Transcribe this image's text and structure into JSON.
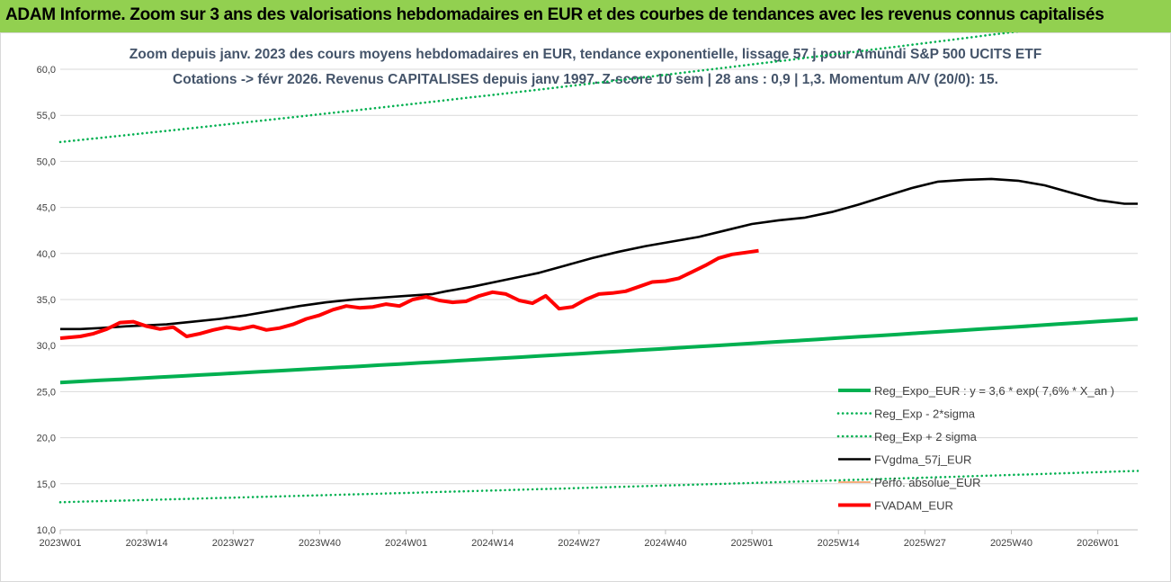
{
  "header": {
    "title": "ADAM Informe. Zoom sur 3 ans des valorisations hebdomadaires en EUR et des courbes de tendances avec les revenus connus capitalisés"
  },
  "colors": {
    "header_bg": "#92d050",
    "green": "#00b050",
    "black": "#000000",
    "red": "#ff0000",
    "grid": "#d9d9d9",
    "subtitle": "#44546a"
  },
  "chart_data": {
    "type": "line",
    "title_line1": "Zoom depuis janv. 2023 des cours moyens hebdomadaires en EUR, tendance exponentielle, lissage 57 j pour Amundi S&P 500 UCITS ETF",
    "title_line2": "Cotations -> févr 2026. Revenus CAPITALISES depuis janv 1997. Z-score 10 sem | 28 ans : 0,9 | 1,3. Momentum A/V (20/0): 15.",
    "ylim": [
      10,
      60
    ],
    "yticks": [
      "10,0",
      "15,0",
      "20,0",
      "25,0",
      "30,0",
      "35,0",
      "40,0",
      "45,0",
      "50,0",
      "55,0",
      "60,0"
    ],
    "xticks": [
      "2023W01",
      "2023W14",
      "2023W27",
      "2023W40",
      "2024W01",
      "2024W14",
      "2024W27",
      "2024W40",
      "2025W01",
      "2025W14",
      "2025W27",
      "2025W40",
      "2026W01"
    ],
    "x_points": 163,
    "grid": true,
    "legend_position": "bottom-right",
    "series": [
      {
        "name": "Reg_Expo_EUR : y = 3,6 * exp( 7,6% *  X_an )",
        "style": "solid-thick",
        "color": "#00b050",
        "points": [
          [
            0,
            26.0
          ],
          [
            162,
            32.9
          ]
        ]
      },
      {
        "name": "Reg_Exp - 2*sigma",
        "style": "dotted",
        "color": "#00b050",
        "points": [
          [
            0,
            13.0
          ],
          [
            162,
            16.4
          ]
        ]
      },
      {
        "name": "Reg_Exp + 2 sigma",
        "style": "dotted",
        "color": "#00b050",
        "points": [
          [
            0,
            52.1
          ],
          [
            162,
            65.8
          ]
        ]
      },
      {
        "name": "FVgdma_57j_EUR",
        "style": "solid",
        "color": "#000000",
        "points": [
          [
            0,
            31.8
          ],
          [
            3,
            31.8
          ],
          [
            6,
            31.9
          ],
          [
            10,
            32.1
          ],
          [
            13,
            32.2
          ],
          [
            16,
            32.3
          ],
          [
            20,
            32.6
          ],
          [
            24,
            32.9
          ],
          [
            28,
            33.3
          ],
          [
            32,
            33.8
          ],
          [
            36,
            34.3
          ],
          [
            40,
            34.7
          ],
          [
            44,
            35.0
          ],
          [
            48,
            35.2
          ],
          [
            52,
            35.4
          ],
          [
            56,
            35.6
          ],
          [
            58,
            35.9
          ],
          [
            62,
            36.4
          ],
          [
            66,
            37.0
          ],
          [
            70,
            37.6
          ],
          [
            72,
            37.9
          ],
          [
            76,
            38.7
          ],
          [
            80,
            39.5
          ],
          [
            84,
            40.2
          ],
          [
            88,
            40.8
          ],
          [
            92,
            41.3
          ],
          [
            96,
            41.8
          ],
          [
            100,
            42.5
          ],
          [
            104,
            43.2
          ],
          [
            108,
            43.6
          ],
          [
            112,
            43.9
          ],
          [
            116,
            44.5
          ],
          [
            120,
            45.3
          ],
          [
            124,
            46.2
          ],
          [
            128,
            47.1
          ],
          [
            132,
            47.8
          ],
          [
            136,
            48.0
          ],
          [
            140,
            48.1
          ],
          [
            144,
            47.9
          ],
          [
            148,
            47.4
          ],
          [
            152,
            46.6
          ],
          [
            156,
            45.8
          ],
          [
            160,
            45.4
          ],
          [
            162,
            45.4
          ]
        ]
      },
      {
        "name": "Perfo. absolue_EUR",
        "style": "solid-thin",
        "color": "#ed7d31",
        "points": []
      },
      {
        "name": "FVADAM_EUR",
        "style": "solid-thick",
        "color": "#ff0000",
        "points": [
          [
            0,
            30.8
          ],
          [
            3,
            31.0
          ],
          [
            5,
            31.3
          ],
          [
            7,
            31.8
          ],
          [
            9,
            32.5
          ],
          [
            11,
            32.6
          ],
          [
            13,
            32.1
          ],
          [
            15,
            31.8
          ],
          [
            17,
            32.0
          ],
          [
            19,
            31.0
          ],
          [
            21,
            31.3
          ],
          [
            23,
            31.7
          ],
          [
            25,
            32.0
          ],
          [
            27,
            31.8
          ],
          [
            29,
            32.1
          ],
          [
            31,
            31.7
          ],
          [
            33,
            31.9
          ],
          [
            35,
            32.3
          ],
          [
            37,
            32.9
          ],
          [
            39,
            33.3
          ],
          [
            41,
            33.9
          ],
          [
            43,
            34.3
          ],
          [
            45,
            34.1
          ],
          [
            47,
            34.2
          ],
          [
            49,
            34.5
          ],
          [
            51,
            34.3
          ],
          [
            53,
            35.0
          ],
          [
            55,
            35.3
          ],
          [
            57,
            34.9
          ],
          [
            59,
            34.7
          ],
          [
            61,
            34.8
          ],
          [
            63,
            35.4
          ],
          [
            65,
            35.8
          ],
          [
            67,
            35.6
          ],
          [
            69,
            34.9
          ],
          [
            71,
            34.6
          ],
          [
            73,
            35.4
          ],
          [
            75,
            34.0
          ],
          [
            77,
            34.2
          ],
          [
            79,
            35.0
          ],
          [
            81,
            35.6
          ],
          [
            83,
            35.7
          ],
          [
            85,
            35.9
          ],
          [
            87,
            36.4
          ],
          [
            89,
            36.9
          ],
          [
            91,
            37.0
          ],
          [
            93,
            37.3
          ],
          [
            95,
            38.0
          ],
          [
            97,
            38.7
          ],
          [
            99,
            39.5
          ],
          [
            101,
            39.9
          ],
          [
            103,
            40.1
          ],
          [
            105,
            40.3
          ]
        ]
      }
    ]
  }
}
